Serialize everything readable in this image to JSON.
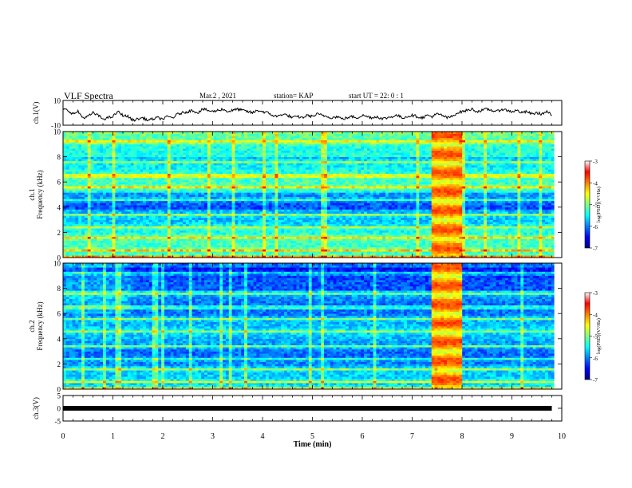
{
  "header": {
    "title": "VLF Spectra",
    "date": "Mar.2 , 2021",
    "station": "station= KAP",
    "start_ut": "start  UT =   22: 0  : 1"
  },
  "chart_data": [
    {
      "type": "line",
      "name": "ch1-waveform",
      "ylabel": "ch.1(V)",
      "ylim": [
        -10,
        10
      ],
      "yticks": [
        "10",
        "-10"
      ],
      "x": [
        0,
        0.1,
        0.2,
        0.3,
        0.4,
        0.5,
        0.6,
        0.7,
        0.8,
        0.9,
        1.0,
        1.1,
        1.2,
        1.3,
        1.4,
        1.5,
        1.6,
        1.7,
        1.8,
        1.9,
        2.0,
        2.1,
        2.2,
        2.3,
        2.4,
        2.5,
        2.6,
        2.7,
        2.8,
        2.9,
        3.0,
        3.1,
        3.2,
        3.3,
        3.4,
        3.5,
        3.6,
        3.7,
        3.8,
        3.9,
        4.0,
        4.1,
        4.2,
        4.3,
        4.4,
        4.5,
        4.6,
        4.7,
        4.8,
        4.9,
        5.0,
        5.1,
        5.2,
        5.3,
        5.4,
        5.5,
        5.6,
        5.7,
        5.8,
        5.9,
        6.0,
        6.1,
        6.2,
        6.3,
        6.4,
        6.5,
        6.6,
        6.7,
        6.8,
        6.9,
        7.0,
        7.1,
        7.2,
        7.3,
        7.4,
        7.5,
        7.6,
        7.7,
        7.8,
        7.9,
        8.0,
        8.1,
        8.2,
        8.3,
        8.4,
        8.5,
        8.6,
        8.7,
        8.8,
        8.9,
        9.0,
        9.1,
        9.2,
        9.3,
        9.4,
        9.5,
        9.6,
        9.7,
        9.8
      ],
      "values": [
        3,
        2,
        -1,
        1,
        -4,
        -3,
        0,
        -2,
        -5,
        -4,
        -3,
        1,
        -2,
        -3,
        -6,
        -5,
        -4,
        -6,
        -5,
        -4,
        -5,
        -3,
        -4,
        -1,
        0,
        1,
        2,
        0,
        3,
        2,
        1,
        2,
        3,
        1,
        2,
        3,
        2,
        1,
        0,
        2,
        1,
        0,
        -2,
        -3,
        -1,
        -2,
        -4,
        -3,
        -4,
        -2,
        -3,
        -1,
        -2,
        -3,
        -4,
        -3,
        -5,
        -4,
        -3,
        -4,
        -2,
        -3,
        -4,
        -3,
        -5,
        -4,
        -3,
        -2,
        -4,
        -3,
        -2,
        -3,
        -4,
        -2,
        -3,
        -1,
        -2,
        -4,
        -3,
        0,
        1,
        2,
        3,
        1,
        2,
        3,
        2,
        1,
        3,
        2,
        1,
        2,
        0,
        1,
        -1,
        0,
        -1,
        1,
        -2
      ]
    },
    {
      "type": "heatmap",
      "name": "ch1-spectrogram",
      "ylabel": "ch.1\nFrequency  (kHz)",
      "ylim": [
        0,
        10
      ],
      "yticks": [
        "0",
        "2",
        "4",
        "6",
        "8",
        "10"
      ],
      "colorbar": {
        "label": "log(PSD)(V²/Hz)",
        "range": [
          -7,
          -3
        ],
        "ticks": [
          "-3",
          "-4",
          "-5",
          "-6",
          "-7"
        ]
      },
      "bursts": [
        {
          "t_start": 7.37,
          "t_end": 8.0
        }
      ]
    },
    {
      "type": "heatmap",
      "name": "ch2-spectrogram",
      "ylabel": "ch.2\nFrequency  (kHz)",
      "ylim": [
        0,
        10
      ],
      "yticks": [
        "0",
        "2",
        "4",
        "6",
        "8",
        "10"
      ],
      "colorbar": {
        "label": "log(PSD)(V²/Hz)",
        "range": [
          -7,
          -3
        ],
        "ticks": [
          "-3",
          "-4",
          "-5",
          "-6",
          "-7"
        ]
      },
      "bursts": [
        {
          "t_start": 7.37,
          "t_end": 8.0
        }
      ]
    },
    {
      "type": "line",
      "name": "ch3-level",
      "ylabel": "ch.3(V)",
      "ylim": [
        -5,
        5
      ],
      "yticks": [
        "5",
        "0",
        "-5"
      ],
      "x": [
        0,
        9.8
      ],
      "values": [
        0,
        0
      ]
    }
  ],
  "xaxis": {
    "label": "Time  (min)",
    "xlim": [
      0,
      10
    ],
    "ticks": [
      "0",
      "1",
      "2",
      "3",
      "4",
      "5",
      "6",
      "7",
      "8",
      "9",
      "10"
    ]
  },
  "colors": {
    "cmap": [
      "#000080",
      "#0000ff",
      "#0080ff",
      "#00ffff",
      "#80ff80",
      "#ffff00",
      "#ff8000",
      "#ff0000",
      "#ffffff"
    ],
    "trace": "#000000"
  }
}
